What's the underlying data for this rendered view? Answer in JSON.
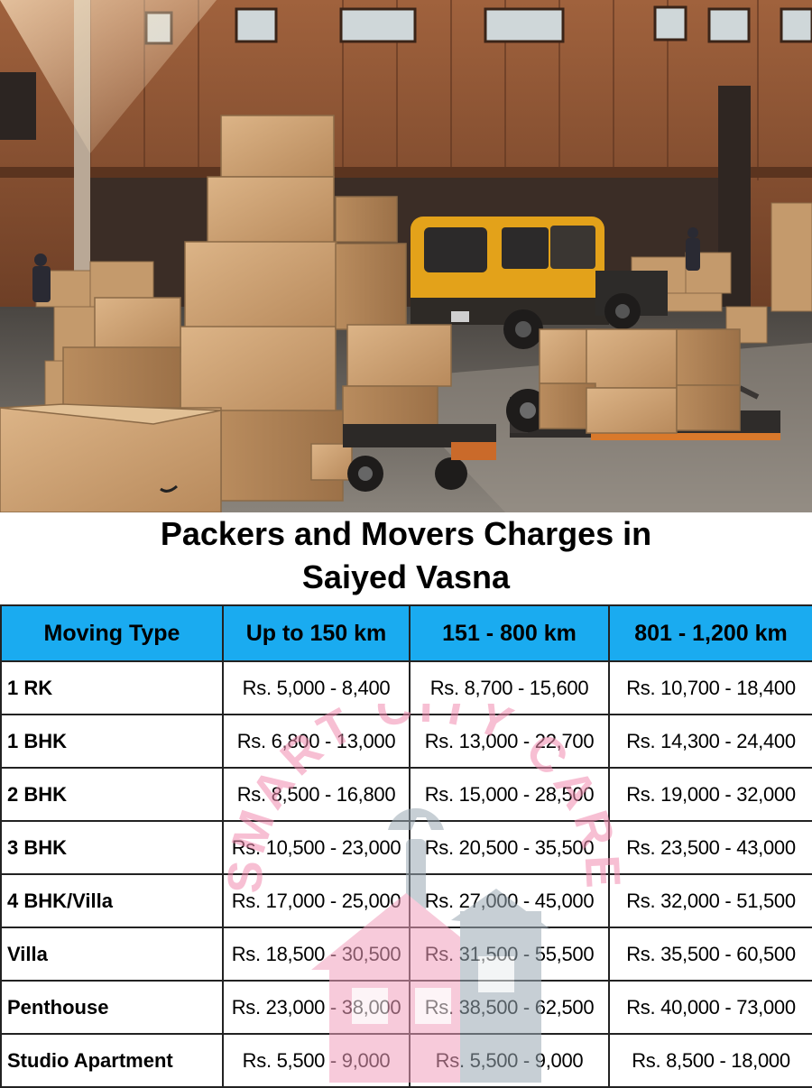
{
  "heading": {
    "line1": "Packers and Movers Charges in",
    "line2": "Saiyed Vasna"
  },
  "watermark": {
    "text": "SMART CITY CARE",
    "color": "#f28cb0"
  },
  "table": {
    "header_color": "#1aabf0",
    "columns": [
      "Moving Type",
      "Up to 150 km",
      "151 - 800 km",
      "801 - 1,200 km"
    ],
    "rows": [
      {
        "type": "1 RK",
        "c1": "Rs. 5,000 - 8,400",
        "c2": "Rs. 8,700 - 15,600",
        "c3": "Rs. 10,700 - 18,400"
      },
      {
        "type": "1 BHK",
        "c1": "Rs. 6,800 - 13,000",
        "c2": "Rs. 13,000 - 22,700",
        "c3": "Rs. 14,300 - 24,400"
      },
      {
        "type": "2 BHK",
        "c1": "Rs. 8,500 - 16,800",
        "c2": "Rs. 15,000 - 28,500",
        "c3": "Rs. 19,000 - 32,000"
      },
      {
        "type": "3 BHK",
        "c1": "Rs. 10,500 - 23,000",
        "c2": "Rs. 20,500 - 35,500",
        "c3": "Rs. 23,500 - 43,000"
      },
      {
        "type": "4 BHK/Villa",
        "c1": "Rs. 17,000 - 25,000",
        "c2": "Rs. 27,000 - 45,000",
        "c3": "Rs. 32,000 - 51,500"
      },
      {
        "type": "Villa",
        "c1": "Rs. 18,500 - 30,500",
        "c2": "Rs. 31,500 - 55,500",
        "c3": "Rs. 35,500 - 60,500"
      },
      {
        "type": "Penthouse",
        "c1": "Rs. 23,000 - 38,000",
        "c2": "Rs. 38,500 - 62,500",
        "c3": "Rs. 40,000 - 73,000"
      },
      {
        "type": "Studio Apartment",
        "c1": "Rs. 5,500 - 9,000",
        "c2": "Rs. 5,500 - 9,000",
        "c3": "Rs. 8,500 - 18,000"
      }
    ]
  }
}
